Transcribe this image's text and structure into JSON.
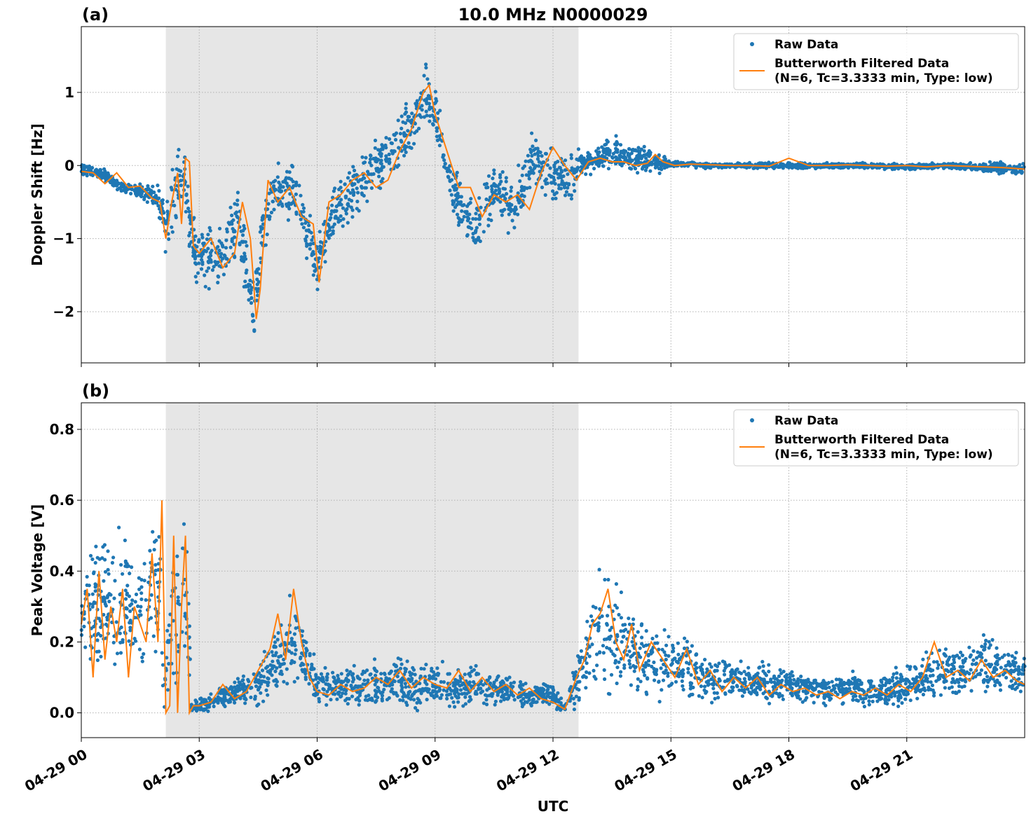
{
  "figure": {
    "title": "10.0 MHz N0000029",
    "xlabel": "UTC",
    "x_ticks": [
      "04-29 00",
      "04-29 03",
      "04-29 06",
      "04-29 09",
      "04-29 12",
      "04-29 15",
      "04-29 18",
      "04-29 21"
    ]
  },
  "legend": {
    "raw_label": "Raw Data",
    "filtered_label_line1": "Butterworth Filtered Data",
    "filtered_label_line2": "(N=6, Tc=3.3333 min, Type: low)"
  },
  "colors": {
    "raw": "#1f77b4",
    "filtered": "#ff7f0e",
    "shade": "#e6e6e6",
    "grid": "#b0b0b0"
  },
  "chart_data": [
    {
      "type": "scatter",
      "panel_label": "(a)",
      "ylabel": "Doppler Shift [Hz]",
      "xlim_hours": [
        0,
        24
      ],
      "ylim": [
        -2.7,
        1.9
      ],
      "y_ticks": [
        -2,
        -1,
        0,
        1
      ],
      "y_tick_labels": [
        "−2",
        "−1",
        "0",
        "1"
      ],
      "grid": true,
      "legend_position": "top-right",
      "shaded_interval_hours": [
        2.15,
        12.65
      ],
      "series": [
        {
          "name": "Raw Data",
          "kind": "points",
          "x_hours": [
            0,
            0.5,
            1,
            1.5,
            2,
            2.15,
            2.4,
            2.6,
            2.75,
            3,
            3.5,
            4,
            4.4,
            4.6,
            5,
            5.5,
            6,
            6.5,
            7,
            7.5,
            8,
            8.5,
            8.75,
            9,
            9.5,
            10,
            10.5,
            11,
            11.5,
            12,
            12.5,
            12.65,
            13,
            13.5,
            14,
            14.5,
            15,
            16,
            17,
            18,
            19,
            20,
            21,
            22,
            23,
            24
          ],
          "y_center": [
            -0.05,
            -0.1,
            -0.3,
            -0.35,
            -0.5,
            -0.9,
            -0.3,
            0.0,
            -0.9,
            -1.2,
            -1.3,
            -0.8,
            -2.0,
            -0.9,
            -0.3,
            -0.4,
            -1.4,
            -0.6,
            -0.3,
            0.0,
            0.2,
            0.6,
            1.0,
            0.7,
            -0.4,
            -0.9,
            -0.3,
            -0.6,
            0.1,
            -0.2,
            -0.2,
            0.05,
            0.05,
            0.2,
            0.1,
            0.05,
            0.02,
            0.0,
            0.0,
            0.0,
            0.0,
            0.0,
            -0.02,
            0.0,
            -0.03,
            -0.05
          ],
          "y_spread": [
            0.12,
            0.1,
            0.12,
            0.15,
            0.3,
            0.5,
            0.6,
            0.6,
            0.6,
            0.6,
            0.6,
            0.6,
            0.6,
            0.6,
            0.5,
            0.5,
            0.5,
            0.5,
            0.5,
            0.5,
            0.5,
            0.5,
            0.5,
            0.5,
            0.5,
            0.5,
            0.5,
            0.5,
            0.5,
            0.5,
            0.4,
            0.2,
            0.2,
            0.3,
            0.25,
            0.25,
            0.05,
            0.05,
            0.05,
            0.06,
            0.05,
            0.05,
            0.05,
            0.05,
            0.1,
            0.12
          ]
        },
        {
          "name": "Butterworth Filtered Data (N=6, Tc=3.3333 min, Type: low)",
          "kind": "line",
          "x_hours": [
            0,
            0.3,
            0.6,
            0.9,
            1.2,
            1.5,
            1.8,
            2.0,
            2.15,
            2.3,
            2.45,
            2.55,
            2.65,
            2.75,
            2.85,
            3.0,
            3.3,
            3.6,
            3.9,
            4.1,
            4.3,
            4.45,
            4.55,
            4.75,
            5.0,
            5.3,
            5.6,
            5.9,
            6.05,
            6.3,
            6.6,
            6.9,
            7.2,
            7.5,
            7.8,
            8.1,
            8.4,
            8.7,
            8.85,
            9.0,
            9.3,
            9.6,
            9.9,
            10.2,
            10.5,
            10.8,
            11.1,
            11.4,
            11.7,
            12.0,
            12.3,
            12.6,
            12.9,
            13.2,
            13.5,
            13.8,
            14.1,
            14.4,
            14.6,
            14.8,
            15.1,
            15.5,
            16,
            16.5,
            17,
            17.5,
            18,
            18.5,
            19,
            19.5,
            20,
            20.5,
            21,
            21.5,
            22,
            22.5,
            23,
            23.5,
            24
          ],
          "values": [
            -0.08,
            -0.1,
            -0.25,
            -0.1,
            -0.3,
            -0.28,
            -0.45,
            -0.5,
            -1.0,
            -0.5,
            -0.1,
            -0.8,
            0.1,
            0.05,
            -1.1,
            -1.2,
            -1.0,
            -1.4,
            -1.2,
            -0.5,
            -1.0,
            -2.1,
            -1.7,
            -0.2,
            -0.5,
            -0.3,
            -0.7,
            -0.8,
            -1.6,
            -0.5,
            -0.4,
            -0.2,
            -0.1,
            -0.3,
            -0.2,
            0.2,
            0.5,
            1.0,
            1.1,
            0.7,
            0.2,
            -0.3,
            -0.3,
            -0.7,
            -0.4,
            -0.5,
            -0.4,
            -0.6,
            -0.1,
            0.25,
            0.0,
            -0.2,
            0.05,
            0.1,
            0.05,
            0.05,
            0.0,
            0.03,
            0.15,
            0.05,
            0.0,
            0.02,
            0.01,
            0.0,
            0.0,
            -0.01,
            0.1,
            0.0,
            0.0,
            0.01,
            0.0,
            -0.01,
            0.0,
            -0.02,
            0.0,
            -0.01,
            -0.02,
            -0.03,
            -0.05
          ]
        }
      ]
    },
    {
      "type": "scatter",
      "panel_label": "(b)",
      "ylabel": "Peak Voltage [V]",
      "xlim_hours": [
        0,
        24
      ],
      "ylim": [
        -0.07,
        0.875
      ],
      "y_ticks": [
        0.0,
        0.2,
        0.4,
        0.6,
        0.8
      ],
      "y_tick_labels": [
        "0.0",
        "0.2",
        "0.4",
        "0.6",
        "0.8"
      ],
      "grid": true,
      "legend_position": "top-right",
      "shaded_interval_hours": [
        2.15,
        12.65
      ],
      "series": [
        {
          "name": "Raw Data",
          "kind": "points",
          "x_hours": [
            0,
            0.5,
            1,
            1.5,
            2,
            2.1,
            2.3,
            2.5,
            2.7,
            2.8,
            3.0,
            3.5,
            4,
            4.5,
            5,
            5.3,
            5.5,
            6,
            6.5,
            7,
            7.5,
            8,
            8.5,
            9,
            9.5,
            10,
            10.5,
            11,
            11.5,
            12,
            12.3,
            12.6,
            12.8,
            13,
            13.3,
            13.6,
            14,
            14.5,
            15,
            15.5,
            16,
            16.5,
            17,
            17.5,
            18,
            18.5,
            19,
            19.5,
            20,
            20.5,
            21,
            21.5,
            22,
            22.5,
            23,
            23.5,
            24
          ],
          "y_center": [
            0.3,
            0.3,
            0.3,
            0.3,
            0.35,
            0.02,
            0.3,
            0.3,
            0.3,
            0.02,
            0.02,
            0.04,
            0.06,
            0.08,
            0.15,
            0.2,
            0.2,
            0.08,
            0.07,
            0.08,
            0.08,
            0.09,
            0.08,
            0.08,
            0.07,
            0.08,
            0.07,
            0.06,
            0.05,
            0.05,
            0.01,
            0.1,
            0.15,
            0.2,
            0.25,
            0.2,
            0.18,
            0.15,
            0.13,
            0.12,
            0.1,
            0.1,
            0.09,
            0.08,
            0.08,
            0.07,
            0.07,
            0.07,
            0.06,
            0.06,
            0.08,
            0.1,
            0.12,
            0.12,
            0.15,
            0.12,
            0.1
          ],
          "y_spread": [
            0.25,
            0.25,
            0.25,
            0.25,
            0.3,
            0.02,
            0.3,
            0.3,
            0.3,
            0.02,
            0.03,
            0.04,
            0.05,
            0.08,
            0.12,
            0.2,
            0.15,
            0.07,
            0.06,
            0.08,
            0.08,
            0.09,
            0.08,
            0.08,
            0.07,
            0.07,
            0.06,
            0.05,
            0.05,
            0.05,
            0.02,
            0.1,
            0.15,
            0.2,
            0.25,
            0.2,
            0.15,
            0.13,
            0.12,
            0.1,
            0.08,
            0.08,
            0.07,
            0.07,
            0.07,
            0.06,
            0.06,
            0.06,
            0.06,
            0.06,
            0.07,
            0.09,
            0.1,
            0.1,
            0.12,
            0.1,
            0.09
          ]
        },
        {
          "name": "Butterworth Filtered Data (N=6, Tc=3.3333 min, Type: low)",
          "kind": "line",
          "x_hours": [
            0,
            0.15,
            0.3,
            0.45,
            0.6,
            0.75,
            0.9,
            1.05,
            1.2,
            1.35,
            1.5,
            1.65,
            1.8,
            1.95,
            2.05,
            2.15,
            2.25,
            2.35,
            2.45,
            2.55,
            2.65,
            2.75,
            2.85,
            3.0,
            3.3,
            3.6,
            3.9,
            4.2,
            4.5,
            4.8,
            5.0,
            5.2,
            5.4,
            5.6,
            5.8,
            6.0,
            6.3,
            6.6,
            6.9,
            7.2,
            7.5,
            7.8,
            8.1,
            8.4,
            8.7,
            9.0,
            9.3,
            9.6,
            9.9,
            10.2,
            10.5,
            10.8,
            11.1,
            11.4,
            11.7,
            12.0,
            12.3,
            12.6,
            12.8,
            13.0,
            13.2,
            13.4,
            13.6,
            13.8,
            14.0,
            14.2,
            14.5,
            14.8,
            15.1,
            15.4,
            15.7,
            16.0,
            16.3,
            16.6,
            16.9,
            17.2,
            17.5,
            17.8,
            18.1,
            18.4,
            18.7,
            19.0,
            19.3,
            19.6,
            19.9,
            20.2,
            20.5,
            20.8,
            21.1,
            21.4,
            21.7,
            22.0,
            22.3,
            22.6,
            22.9,
            23.2,
            23.5,
            23.8,
            24.0
          ],
          "values": [
            0.25,
            0.35,
            0.1,
            0.4,
            0.15,
            0.3,
            0.2,
            0.35,
            0.1,
            0.3,
            0.25,
            0.2,
            0.45,
            0.2,
            0.6,
            0.0,
            0.02,
            0.5,
            0.0,
            0.3,
            0.5,
            0.0,
            0.02,
            0.02,
            0.03,
            0.08,
            0.04,
            0.06,
            0.12,
            0.18,
            0.28,
            0.15,
            0.35,
            0.2,
            0.1,
            0.06,
            0.05,
            0.08,
            0.06,
            0.07,
            0.1,
            0.08,
            0.12,
            0.07,
            0.1,
            0.08,
            0.07,
            0.12,
            0.06,
            0.1,
            0.06,
            0.08,
            0.05,
            0.07,
            0.04,
            0.03,
            0.01,
            0.1,
            0.15,
            0.25,
            0.28,
            0.35,
            0.2,
            0.15,
            0.25,
            0.12,
            0.2,
            0.15,
            0.1,
            0.18,
            0.08,
            0.12,
            0.06,
            0.1,
            0.07,
            0.1,
            0.05,
            0.08,
            0.06,
            0.07,
            0.05,
            0.06,
            0.04,
            0.06,
            0.05,
            0.07,
            0.05,
            0.08,
            0.06,
            0.1,
            0.2,
            0.1,
            0.12,
            0.09,
            0.15,
            0.1,
            0.12,
            0.09,
            0.08
          ]
        }
      ]
    }
  ]
}
